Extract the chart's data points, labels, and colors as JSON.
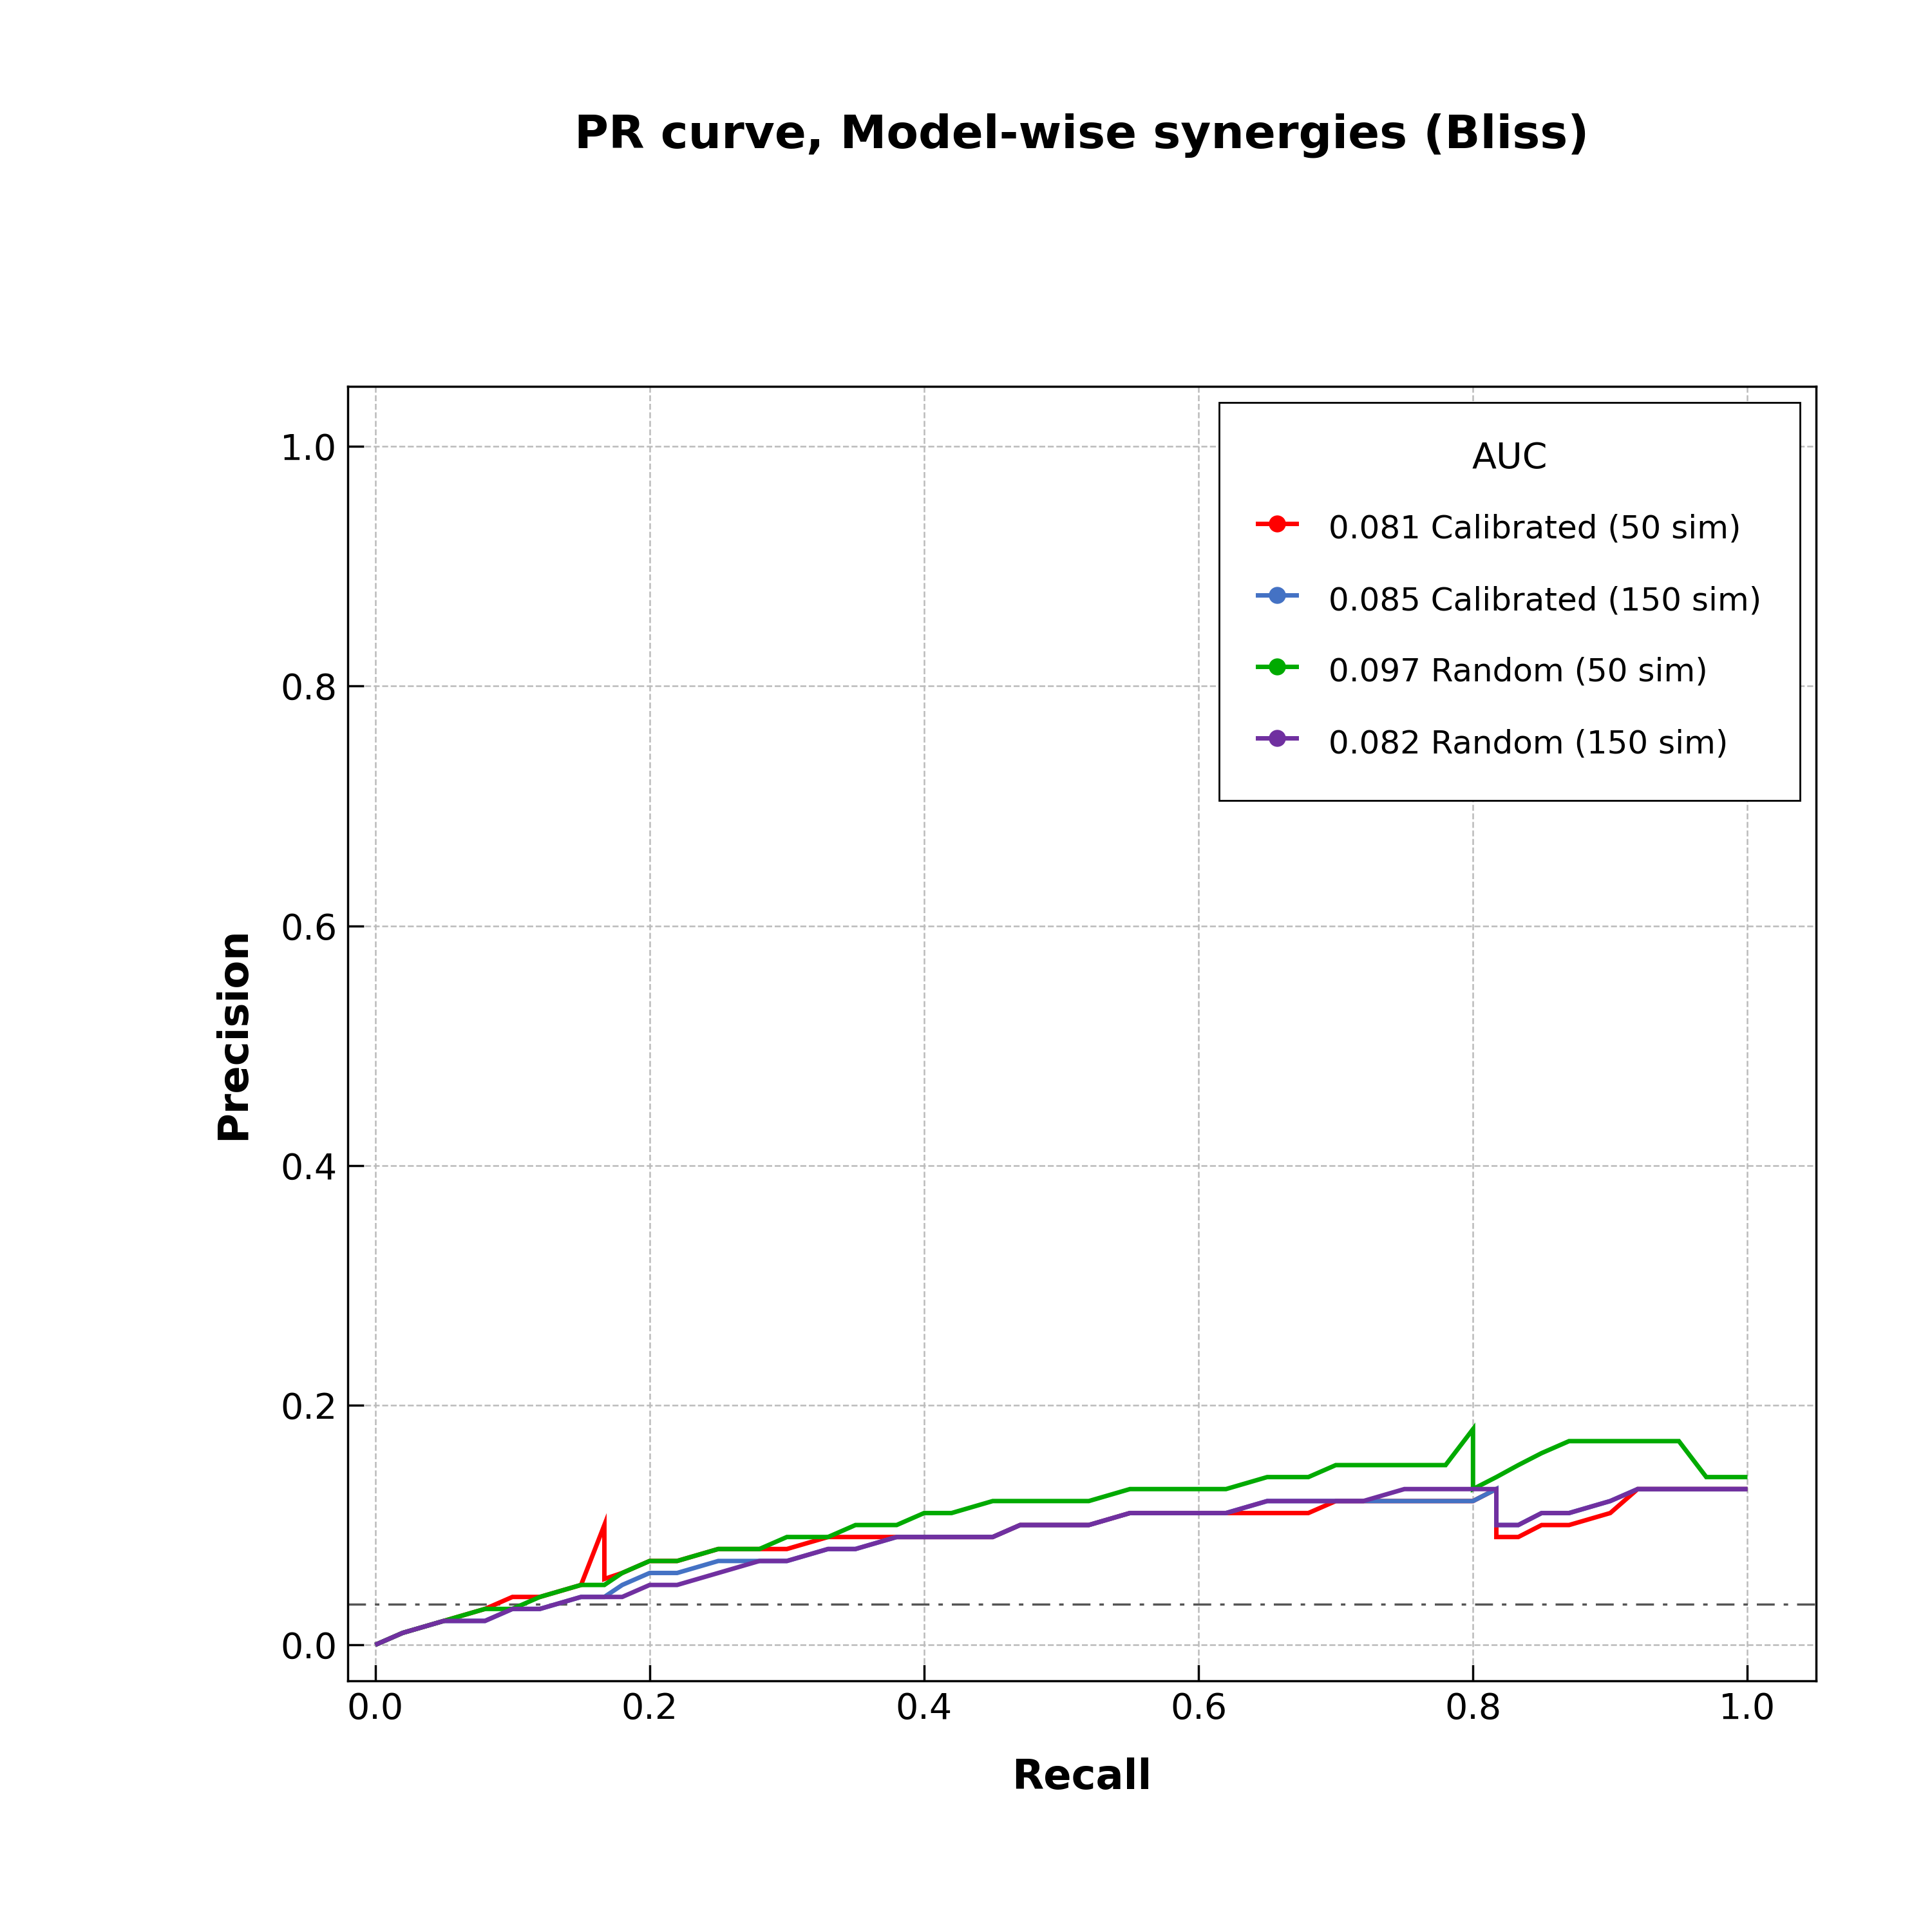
{
  "title": "PR curve, Model-wise synergies (Bliss)",
  "xlabel": "Recall",
  "ylabel": "Precision",
  "xlim": [
    -0.02,
    1.05
  ],
  "ylim": [
    -0.03,
    1.05
  ],
  "background_color": "#ffffff",
  "title_fontsize": 52,
  "axis_label_fontsize": 46,
  "tick_fontsize": 40,
  "legend_fontsize": 36,
  "legend_title_fontsize": 40,
  "baseline_y": 0.034,
  "curves": [
    {
      "label": "0.081 Calibrated (50 sim)",
      "color": "#FF0000",
      "recall": [
        0.0,
        0.0,
        0.02,
        0.05,
        0.08,
        0.1,
        0.12,
        0.15,
        0.167,
        0.167,
        0.18,
        0.2,
        0.22,
        0.25,
        0.28,
        0.3,
        0.33,
        0.35,
        0.38,
        0.4,
        0.42,
        0.45,
        0.47,
        0.5,
        0.52,
        0.55,
        0.57,
        0.6,
        0.62,
        0.65,
        0.68,
        0.7,
        0.72,
        0.75,
        0.78,
        0.8,
        0.817,
        0.817,
        0.833,
        0.85,
        0.87,
        0.9,
        0.92,
        0.95,
        0.97,
        1.0
      ],
      "precision": [
        0.0,
        0.0,
        0.01,
        0.02,
        0.03,
        0.04,
        0.04,
        0.05,
        0.1,
        0.055,
        0.06,
        0.07,
        0.07,
        0.08,
        0.08,
        0.08,
        0.09,
        0.09,
        0.09,
        0.09,
        0.09,
        0.09,
        0.1,
        0.1,
        0.1,
        0.11,
        0.11,
        0.11,
        0.11,
        0.11,
        0.11,
        0.12,
        0.12,
        0.12,
        0.12,
        0.12,
        0.13,
        0.09,
        0.09,
        0.1,
        0.1,
        0.11,
        0.13,
        0.13,
        0.13,
        0.13
      ]
    },
    {
      "label": "0.085 Calibrated (150 sim)",
      "color": "#4472C4",
      "recall": [
        0.0,
        0.0,
        0.02,
        0.05,
        0.08,
        0.1,
        0.12,
        0.15,
        0.167,
        0.18,
        0.2,
        0.22,
        0.25,
        0.28,
        0.3,
        0.33,
        0.35,
        0.38,
        0.4,
        0.42,
        0.45,
        0.47,
        0.5,
        0.52,
        0.55,
        0.57,
        0.6,
        0.62,
        0.65,
        0.68,
        0.7,
        0.72,
        0.75,
        0.78,
        0.8,
        0.817,
        0.817,
        0.833,
        0.85,
        0.87,
        0.9,
        0.92,
        0.95,
        0.97,
        1.0
      ],
      "precision": [
        0.0,
        0.0,
        0.01,
        0.02,
        0.02,
        0.03,
        0.03,
        0.04,
        0.04,
        0.05,
        0.06,
        0.06,
        0.07,
        0.07,
        0.07,
        0.08,
        0.08,
        0.09,
        0.09,
        0.09,
        0.09,
        0.1,
        0.1,
        0.1,
        0.11,
        0.11,
        0.11,
        0.11,
        0.12,
        0.12,
        0.12,
        0.12,
        0.12,
        0.12,
        0.12,
        0.13,
        0.1,
        0.1,
        0.11,
        0.11,
        0.12,
        0.13,
        0.13,
        0.13,
        0.13
      ]
    },
    {
      "label": "0.097 Random (50 sim)",
      "color": "#00AA00",
      "recall": [
        0.0,
        0.0,
        0.02,
        0.05,
        0.08,
        0.1,
        0.12,
        0.15,
        0.167,
        0.18,
        0.2,
        0.22,
        0.25,
        0.28,
        0.3,
        0.33,
        0.35,
        0.38,
        0.4,
        0.42,
        0.45,
        0.47,
        0.5,
        0.52,
        0.55,
        0.57,
        0.6,
        0.62,
        0.65,
        0.68,
        0.7,
        0.72,
        0.75,
        0.78,
        0.8,
        0.8,
        0.817,
        0.833,
        0.85,
        0.87,
        0.9,
        0.92,
        0.95,
        0.97,
        1.0
      ],
      "precision": [
        0.0,
        0.0,
        0.01,
        0.02,
        0.03,
        0.03,
        0.04,
        0.05,
        0.05,
        0.06,
        0.07,
        0.07,
        0.08,
        0.08,
        0.09,
        0.09,
        0.1,
        0.1,
        0.11,
        0.11,
        0.12,
        0.12,
        0.12,
        0.12,
        0.13,
        0.13,
        0.13,
        0.13,
        0.14,
        0.14,
        0.15,
        0.15,
        0.15,
        0.15,
        0.18,
        0.13,
        0.14,
        0.15,
        0.16,
        0.17,
        0.17,
        0.17,
        0.17,
        0.14,
        0.14
      ]
    },
    {
      "label": "0.082 Random (150 sim)",
      "color": "#7030A0",
      "recall": [
        0.0,
        0.0,
        0.02,
        0.05,
        0.08,
        0.1,
        0.12,
        0.15,
        0.167,
        0.18,
        0.2,
        0.22,
        0.25,
        0.28,
        0.3,
        0.33,
        0.35,
        0.38,
        0.4,
        0.42,
        0.45,
        0.47,
        0.5,
        0.52,
        0.55,
        0.57,
        0.6,
        0.62,
        0.65,
        0.68,
        0.7,
        0.72,
        0.75,
        0.78,
        0.8,
        0.817,
        0.817,
        0.833,
        0.85,
        0.87,
        0.9,
        0.92,
        0.95,
        0.97,
        1.0
      ],
      "precision": [
        0.0,
        0.0,
        0.01,
        0.02,
        0.02,
        0.03,
        0.03,
        0.04,
        0.04,
        0.04,
        0.05,
        0.05,
        0.06,
        0.07,
        0.07,
        0.08,
        0.08,
        0.09,
        0.09,
        0.09,
        0.09,
        0.1,
        0.1,
        0.1,
        0.11,
        0.11,
        0.11,
        0.11,
        0.12,
        0.12,
        0.12,
        0.12,
        0.13,
        0.13,
        0.13,
        0.13,
        0.1,
        0.1,
        0.11,
        0.11,
        0.12,
        0.13,
        0.13,
        0.13,
        0.13
      ]
    }
  ]
}
